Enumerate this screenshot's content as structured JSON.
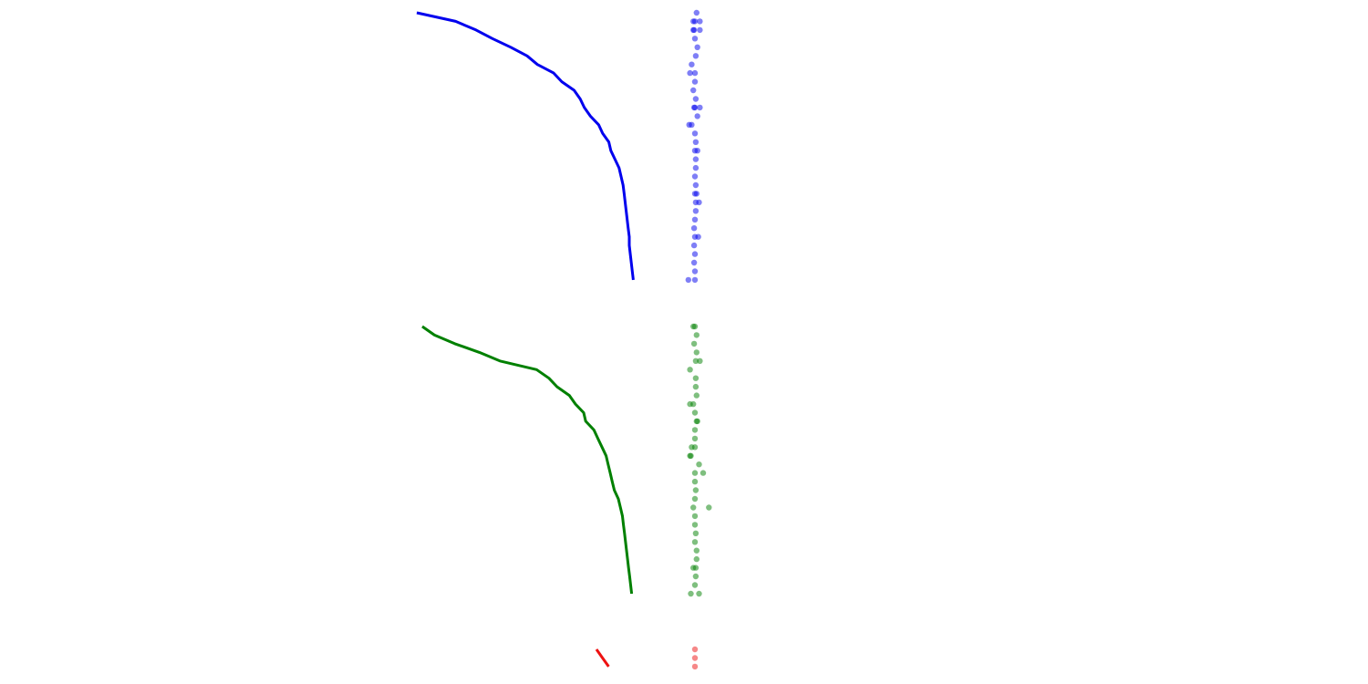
{
  "colors": {
    "blue": "#0000ee",
    "green": "#008000",
    "red": "#ee1111",
    "background": "#ffffff"
  },
  "chart_data": [
    {
      "type": "line",
      "color": "blue",
      "x": [
        0,
        1,
        2,
        3,
        4,
        5,
        6,
        7,
        8,
        9,
        10,
        11,
        12,
        13,
        14,
        15,
        16,
        17,
        18,
        19,
        20,
        21,
        22,
        23,
        24,
        25,
        26,
        27,
        28,
        29,
        30,
        31
      ],
      "y": [
        0,
        -1.9,
        -2.9,
        -3.7,
        -4.6,
        -5.4,
        -5.9,
        -6.7,
        -7.1,
        -7.7,
        -8.0,
        -8.2,
        -8.5,
        -8.9,
        -9.1,
        -9.4,
        -9.5,
        -9.7,
        -9.9,
        -10.0,
        -10.1,
        -10.15,
        -10.2,
        -10.25,
        -10.3,
        -10.35,
        -10.4,
        -10.4,
        -10.45,
        -10.5,
        -10.55,
        -10.6
      ]
    },
    {
      "type": "scatter",
      "color": "blue",
      "x": [
        0,
        1,
        1,
        1,
        2,
        2,
        2,
        3,
        4,
        5,
        6,
        7,
        7,
        8,
        9,
        10,
        11,
        11,
        11,
        12,
        13,
        13,
        14,
        15,
        16,
        16,
        17,
        18,
        19,
        20,
        21,
        21,
        22,
        22,
        23,
        24,
        25,
        26,
        26,
        27,
        28,
        29,
        30,
        31,
        31
      ],
      "y": [
        0.2,
        0.0,
        -0.2,
        0.6,
        -0.1,
        -0.2,
        0.6,
        0.0,
        0.3,
        0.1,
        -0.4,
        -0.6,
        0.0,
        0.0,
        -0.2,
        0.1,
        0.0,
        0.6,
        -0.1,
        0.3,
        -0.7,
        -0.4,
        0.0,
        0.1,
        0.0,
        0.3,
        0.1,
        0.1,
        0.0,
        0.1,
        0.0,
        0.2,
        0.1,
        0.5,
        0.1,
        0.0,
        -0.1,
        0.0,
        0.4,
        -0.1,
        0.0,
        -0.1,
        0.0,
        -0.8,
        0.0
      ]
    },
    {
      "type": "line",
      "color": "green",
      "x": [
        0,
        1,
        2,
        3,
        4,
        5,
        6,
        7,
        8,
        9,
        10,
        11,
        12,
        13,
        14,
        15,
        16,
        17,
        18,
        19,
        20,
        21,
        22,
        23,
        24,
        25,
        26,
        27,
        28,
        29,
        30,
        31
      ],
      "y": [
        0,
        -0.6,
        -1.6,
        -2.8,
        -3.8,
        -5.6,
        -6.2,
        -6.6,
        -7.2,
        -7.5,
        -7.9,
        -8.0,
        -8.4,
        -8.6,
        -8.8,
        -9.0,
        -9.1,
        -9.2,
        -9.3,
        -9.4,
        -9.6,
        -9.7,
        -9.8,
        -9.85,
        -9.9,
        -9.95,
        -10.0,
        -10.05,
        -10.1,
        -10.15,
        -10.2,
        -10.25
      ]
    },
    {
      "type": "scatter",
      "color": "green",
      "x": [
        0,
        0,
        1,
        2,
        3,
        4,
        4,
        5,
        6,
        7,
        8,
        9,
        9,
        10,
        11,
        11,
        12,
        13,
        14,
        14,
        15,
        15,
        16,
        17,
        17,
        18,
        19,
        20,
        21,
        21,
        22,
        23,
        24,
        25,
        26,
        27,
        28,
        28,
        29,
        30,
        31,
        31
      ],
      "y": [
        -0.2,
        0.0,
        0.2,
        -0.1,
        0.2,
        0.1,
        0.6,
        -0.6,
        0.1,
        0.1,
        0.2,
        -0.6,
        -0.2,
        0.0,
        0.2,
        0.3,
        0.0,
        0.0,
        -0.4,
        0.0,
        -0.6,
        -0.5,
        0.5,
        0.0,
        1.0,
        0.0,
        0.1,
        0.0,
        -0.2,
        1.7,
        0.0,
        0.0,
        0.1,
        0.0,
        0.2,
        0.2,
        0.1,
        -0.2,
        0.1,
        0.0,
        -0.5,
        0.5
      ]
    },
    {
      "type": "line",
      "color": "red",
      "x": [
        0,
        1,
        2
      ],
      "y": [
        0,
        -0.3,
        -0.6
      ]
    },
    {
      "type": "scatter",
      "color": "red",
      "x": [
        0,
        1,
        2
      ],
      "y": [
        0.0,
        0.0,
        0.0
      ]
    }
  ]
}
